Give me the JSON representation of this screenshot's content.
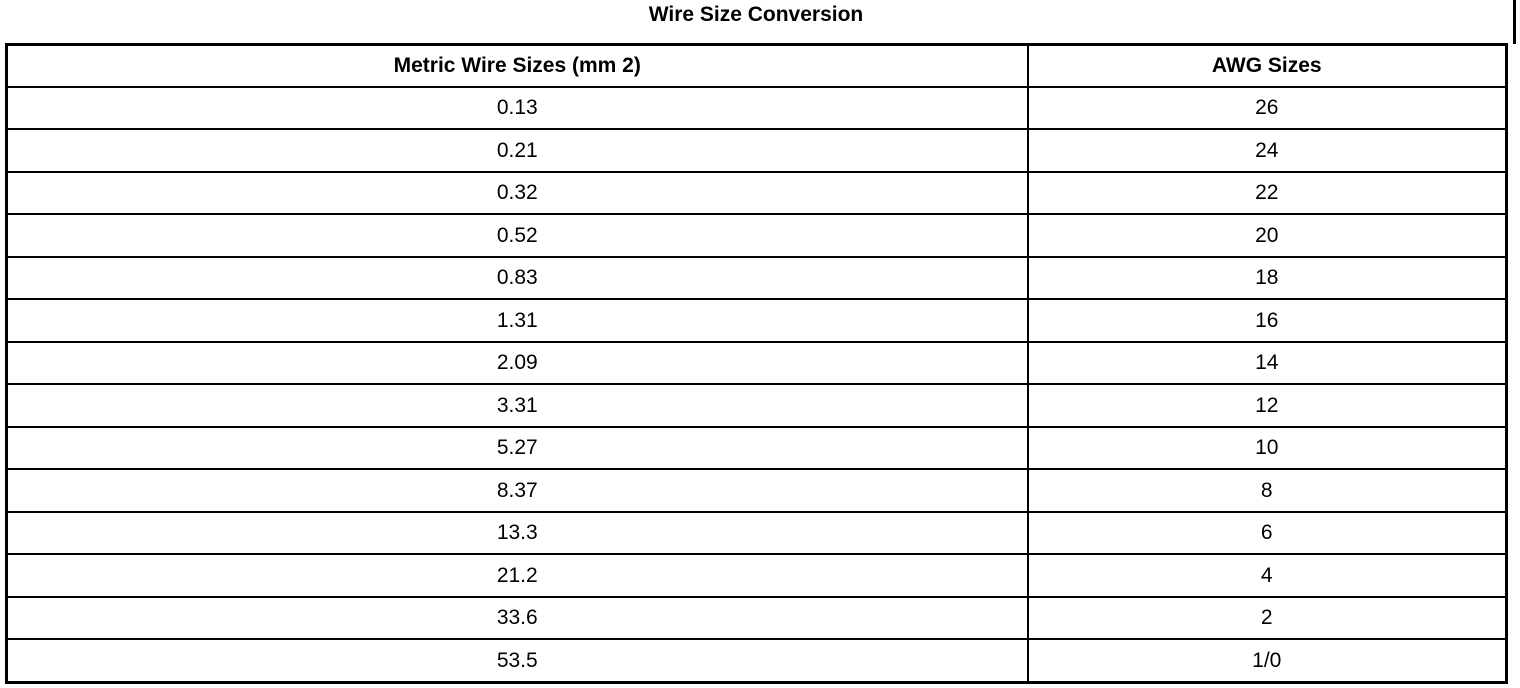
{
  "title": "Wire Size Conversion",
  "table": {
    "header": [
      "Metric Wire Sizes (mm 2)",
      "AWG Sizes"
    ],
    "rows": [
      [
        "0.13",
        "26"
      ],
      [
        "0.21",
        "24"
      ],
      [
        "0.32",
        "22"
      ],
      [
        "0.52",
        "20"
      ],
      [
        "0.83",
        "18"
      ],
      [
        "1.31",
        "16"
      ],
      [
        "2.09",
        "14"
      ],
      [
        "3.31",
        "12"
      ],
      [
        "5.27",
        "10"
      ],
      [
        "8.37",
        "8"
      ],
      [
        "13.3",
        "6"
      ],
      [
        "21.2",
        "4"
      ],
      [
        "33.6",
        "2"
      ],
      [
        "53.5",
        "1/0"
      ]
    ]
  }
}
